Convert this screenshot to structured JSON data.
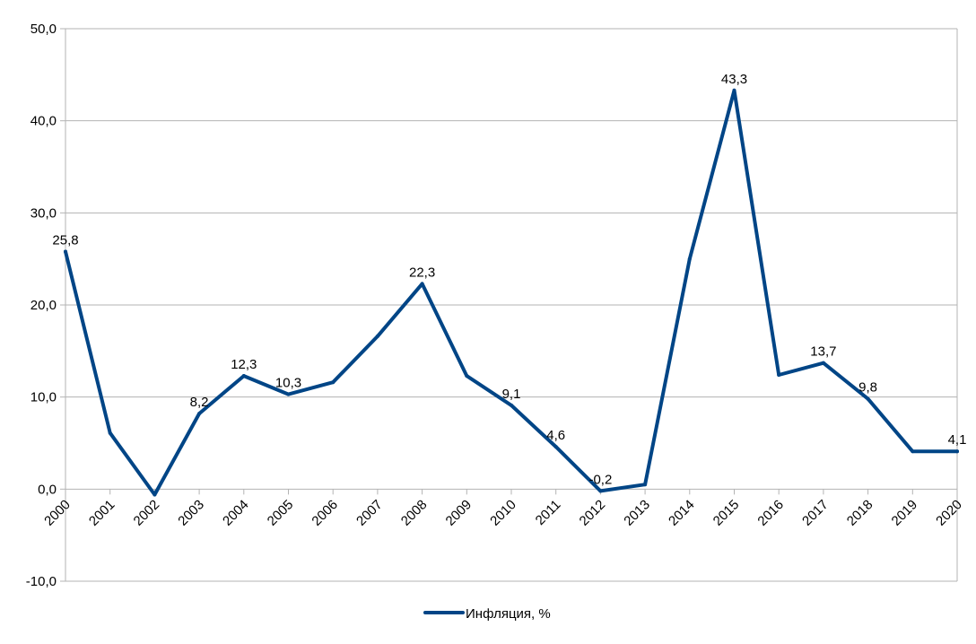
{
  "chart_data": {
    "type": "line",
    "title": "",
    "xlabel": "",
    "ylabel": "",
    "categories": [
      "2000",
      "2001",
      "2002",
      "2003",
      "2004",
      "2005",
      "2006",
      "2007",
      "2008",
      "2009",
      "2010",
      "2011",
      "2012",
      "2013",
      "2014",
      "2015",
      "2016",
      "2017",
      "2018",
      "2019",
      "2020"
    ],
    "series": [
      {
        "name": "Инфляция, %",
        "color": "#004586",
        "values": [
          25.8,
          6.1,
          -0.6,
          8.2,
          12.3,
          10.3,
          11.6,
          16.6,
          22.3,
          12.3,
          9.1,
          4.6,
          -0.2,
          0.5,
          25.0,
          43.3,
          12.4,
          13.7,
          9.8,
          4.1,
          4.1
        ]
      }
    ],
    "data_labels": [
      {
        "category": "2000",
        "text": "25,8"
      },
      {
        "category": "2003",
        "text": "8,2"
      },
      {
        "category": "2004",
        "text": "12,3"
      },
      {
        "category": "2005",
        "text": "10,3"
      },
      {
        "category": "2008",
        "text": "22,3"
      },
      {
        "category": "2010",
        "text": "9,1"
      },
      {
        "category": "2011",
        "text": "4,6"
      },
      {
        "category": "2012",
        "text": "-0,2"
      },
      {
        "category": "2015",
        "text": "43,3"
      },
      {
        "category": "2017",
        "text": "13,7"
      },
      {
        "category": "2018",
        "text": "9,8"
      },
      {
        "category": "2020",
        "text": "4,1"
      }
    ],
    "ylim": [
      -10,
      50
    ],
    "yticks": [
      -10,
      0,
      10,
      20,
      30,
      40,
      50
    ],
    "ytick_labels": [
      "-10,0",
      "0,0",
      "10,0",
      "20,0",
      "30,0",
      "40,0",
      "50,0"
    ],
    "grid": "horizontal",
    "legend_position": "bottom"
  }
}
